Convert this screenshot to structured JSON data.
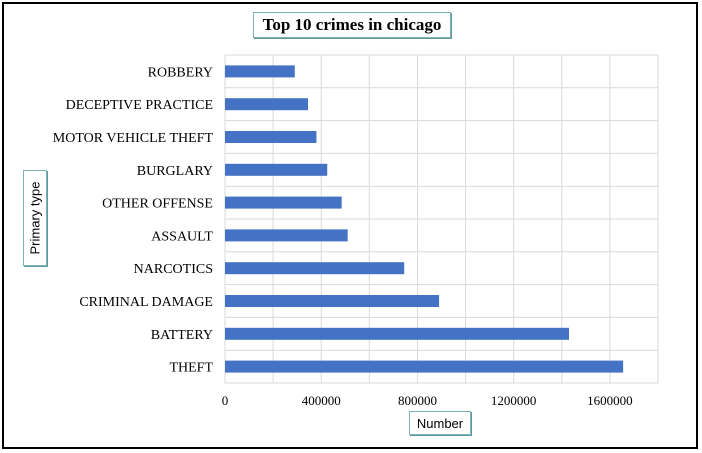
{
  "chart_data": {
    "type": "bar",
    "orientation": "horizontal",
    "title": "Top 10 crimes in chicago",
    "xlabel": "Number",
    "ylabel": "Primary type",
    "categories": [
      "THEFT",
      "BATTERY",
      "CRIMINAL DAMAGE",
      "NARCOTICS",
      "ASSAULT",
      "OTHER OFFENSE",
      "BURGLARY",
      "MOTOR VEHICLE THEFT",
      "DECEPTIVE PRACTICE",
      "ROBBERY"
    ],
    "values": [
      1655000,
      1430000,
      890000,
      745000,
      510000,
      485000,
      425000,
      380000,
      345000,
      290000
    ],
    "xlim": [
      0,
      1800000
    ],
    "xticks": [
      0,
      400000,
      800000,
      1200000,
      1600000
    ],
    "grid": true,
    "legend": "none",
    "bar_color": "#4472c4",
    "grid_color": "#d9d9d9"
  }
}
